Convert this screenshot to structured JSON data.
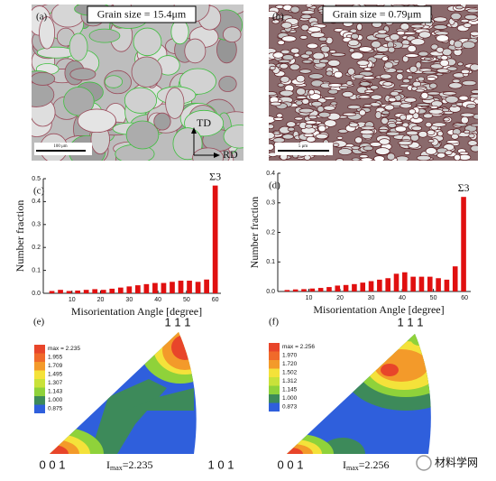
{
  "panels": {
    "a": {
      "label": "(a)",
      "grain_size": "Grain size = 15.4μm",
      "scale_bar": "100 μm",
      "td": "TD",
      "rd": "RD"
    },
    "b": {
      "label": "(b)",
      "grain_size": "Grain size = 0.79μm",
      "scale_bar": "5 μm"
    },
    "c": {
      "label": "(c)"
    },
    "d": {
      "label": "(d)"
    },
    "e": {
      "label": "(e)",
      "legend": [
        "max = 2.235",
        "1.955",
        "1.709",
        "1.495",
        "1.307",
        "1.143",
        "1.000",
        "0.875"
      ],
      "corner_111": "1 1 1",
      "corner_001": "0 0 1",
      "corner_101": "1 0 1",
      "imax": {
        "base": "I",
        "sub": "max",
        "rest": "=2.235"
      }
    },
    "f": {
      "label": "(f)",
      "legend": [
        "max = 2.256",
        "1.970",
        "1.720",
        "1.502",
        "1.312",
        "1.145",
        "1.000",
        "0.873"
      ],
      "corner_111": "1 1 1",
      "corner_001": "0 0 1",
      "imax": {
        "base": "I",
        "sub": "max",
        "rest": "=2.256"
      }
    },
    "watermark": "材料学网"
  },
  "chart_data": [
    {
      "type": "bar",
      "color": "#e01010",
      "ylabel": "Number fraction",
      "xlabel": "Misorientation Angle [degree]",
      "annotation": "Σ3",
      "x": [
        3,
        6,
        9,
        12,
        15,
        18,
        21,
        24,
        27,
        30,
        33,
        36,
        39,
        42,
        45,
        48,
        51,
        54,
        57,
        60
      ],
      "values": [
        0.01,
        0.015,
        0.01,
        0.012,
        0.015,
        0.018,
        0.015,
        0.02,
        0.025,
        0.03,
        0.035,
        0.04,
        0.045,
        0.045,
        0.05,
        0.055,
        0.055,
        0.05,
        0.06,
        0.47
      ],
      "xlim": [
        0,
        62
      ],
      "xticks": [
        10,
        20,
        30,
        40,
        50,
        60
      ],
      "ylim": [
        0,
        0.5
      ],
      "yticks": [
        {
          "value": 0,
          "label": "0.0"
        },
        0.1,
        0.2,
        0.3,
        0.4,
        0.5
      ]
    },
    {
      "type": "bar",
      "color": "#e01010",
      "ylabel": "Number fraction",
      "xlabel": "Misorientation Angle [degree]",
      "annotation": "Σ3",
      "x": [
        3,
        5.7,
        8.4,
        11.1,
        13.8,
        16.5,
        19.2,
        21.9,
        24.6,
        27.3,
        30,
        32.7,
        35.4,
        38.1,
        40.8,
        43.5,
        46.2,
        48.9,
        51.6,
        54.3,
        57,
        59.7
      ],
      "values": [
        0.005,
        0.007,
        0.008,
        0.01,
        0.012,
        0.015,
        0.02,
        0.022,
        0.025,
        0.03,
        0.035,
        0.04,
        0.045,
        0.06,
        0.065,
        0.05,
        0.05,
        0.05,
        0.045,
        0.04,
        0.085,
        0.32
      ],
      "xlim": [
        0,
        62
      ],
      "xticks": [
        10,
        20,
        30,
        40,
        50,
        60
      ],
      "ylim": [
        0,
        0.4
      ],
      "yticks": [
        {
          "value": 0,
          "label": "0.0"
        },
        0.1,
        0.2,
        0.3,
        0.4
      ]
    }
  ]
}
